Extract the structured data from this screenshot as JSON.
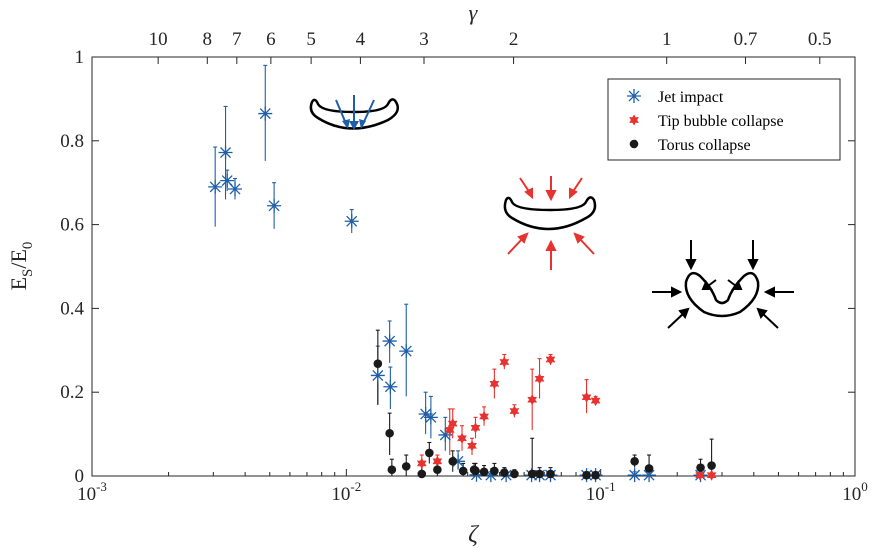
{
  "chart_data": {
    "type": "scatter",
    "xscale": "log",
    "xlim": [
      0.001,
      1
    ],
    "ylim": [
      0,
      1
    ],
    "xlabel": "ζ",
    "ylabel_main": "E",
    "ylabel_sub1": "S",
    "ylabel_slash": "/E",
    "ylabel_sub2": "0",
    "top_axis_label": "γ",
    "x_ticks": [
      {
        "value": 0.001,
        "base": "10",
        "exp": "-3"
      },
      {
        "value": 0.01,
        "base": "10",
        "exp": "-2"
      },
      {
        "value": 0.1,
        "base": "10",
        "exp": "-1"
      },
      {
        "value": 1,
        "base": "10",
        "exp": "0"
      }
    ],
    "y_ticks": [
      {
        "value": 0,
        "label": "0"
      },
      {
        "value": 0.2,
        "label": "0.2"
      },
      {
        "value": 0.4,
        "label": "0.4"
      },
      {
        "value": 0.6,
        "label": "0.6"
      },
      {
        "value": 0.8,
        "label": "0.8"
      },
      {
        "value": 1,
        "label": "1"
      }
    ],
    "top_ticks": [
      {
        "label": "10",
        "zeta": 0.00182
      },
      {
        "label": "8",
        "zeta": 0.00284
      },
      {
        "label": "7",
        "zeta": 0.00371
      },
      {
        "label": "6",
        "zeta": 0.00505
      },
      {
        "label": "5",
        "zeta": 0.00727
      },
      {
        "label": "4",
        "zeta": 0.01136
      },
      {
        "label": "3",
        "zeta": 0.0202
      },
      {
        "label": "2",
        "zeta": 0.04545
      },
      {
        "label": "1",
        "zeta": 0.1818
      },
      {
        "label": "0.7",
        "zeta": 0.371
      },
      {
        "label": "0.5",
        "zeta": 0.727
      }
    ],
    "legend_position": "top-right",
    "series": [
      {
        "name": "Jet impact",
        "marker": "asterisk",
        "color": "#1f5fa8",
        "points": [
          {
            "x": 0.00305,
            "y": 0.69,
            "lo": 0.595,
            "hi": 0.785
          },
          {
            "x": 0.00335,
            "y": 0.772,
            "lo": 0.66,
            "hi": 0.882
          },
          {
            "x": 0.0034,
            "y": 0.705,
            "lo": 0.68,
            "hi": 0.73
          },
          {
            "x": 0.00365,
            "y": 0.685,
            "lo": 0.66,
            "hi": 0.71
          },
          {
            "x": 0.0048,
            "y": 0.865,
            "lo": 0.752,
            "hi": 0.98
          },
          {
            "x": 0.0052,
            "y": 0.645,
            "lo": 0.59,
            "hi": 0.7
          },
          {
            "x": 0.0105,
            "y": 0.608,
            "lo": 0.58,
            "hi": 0.636
          },
          {
            "x": 0.0133,
            "y": 0.24,
            "lo": 0.17,
            "hi": 0.31
          },
          {
            "x": 0.0148,
            "y": 0.322,
            "lo": 0.27,
            "hi": 0.37
          },
          {
            "x": 0.0149,
            "y": 0.213,
            "lo": 0.16,
            "hi": 0.26
          },
          {
            "x": 0.0172,
            "y": 0.298,
            "lo": 0.19,
            "hi": 0.41
          },
          {
            "x": 0.0205,
            "y": 0.148,
            "lo": 0.1,
            "hi": 0.2
          },
          {
            "x": 0.0215,
            "y": 0.14,
            "lo": 0.09,
            "hi": 0.19
          },
          {
            "x": 0.0245,
            "y": 0.098,
            "lo": 0.06,
            "hi": 0.14
          },
          {
            "x": 0.0275,
            "y": 0.035,
            "lo": 0.015,
            "hi": 0.06
          },
          {
            "x": 0.0325,
            "y": 0.003,
            "lo": 0,
            "hi": 0.02
          },
          {
            "x": 0.037,
            "y": 0.002,
            "lo": 0,
            "hi": 0.01
          },
          {
            "x": 0.0425,
            "y": 0.002,
            "lo": 0,
            "hi": 0.01
          },
          {
            "x": 0.0535,
            "y": 0.002,
            "lo": 0,
            "hi": 0.01
          },
          {
            "x": 0.0575,
            "y": 0.002,
            "lo": 0,
            "hi": 0.01
          },
          {
            "x": 0.0635,
            "y": 0.002,
            "lo": 0,
            "hi": 0.01
          },
          {
            "x": 0.088,
            "y": 0.002,
            "lo": 0,
            "hi": 0.01
          },
          {
            "x": 0.0955,
            "y": 0.002,
            "lo": 0,
            "hi": 0.01
          },
          {
            "x": 0.136,
            "y": 0.002,
            "lo": 0,
            "hi": 0.01
          },
          {
            "x": 0.155,
            "y": 0.002,
            "lo": 0,
            "hi": 0.01
          },
          {
            "x": 0.247,
            "y": 0.002,
            "lo": 0,
            "hi": 0.01
          }
        ]
      },
      {
        "name": "Tip bubble collapse",
        "marker": "hexagram",
        "color": "#e8322f",
        "points": [
          {
            "x": 0.0198,
            "y": 0.03,
            "lo": 0.01,
            "hi": 0.05
          },
          {
            "x": 0.0228,
            "y": 0.035,
            "lo": 0.02,
            "hi": 0.05
          },
          {
            "x": 0.0255,
            "y": 0.11,
            "lo": 0.05,
            "hi": 0.16
          },
          {
            "x": 0.0262,
            "y": 0.125,
            "lo": 0.09,
            "hi": 0.16
          },
          {
            "x": 0.0285,
            "y": 0.09,
            "lo": 0.06,
            "hi": 0.12
          },
          {
            "x": 0.0312,
            "y": 0.072,
            "lo": 0.05,
            "hi": 0.09
          },
          {
            "x": 0.0322,
            "y": 0.115,
            "lo": 0.09,
            "hi": 0.14
          },
          {
            "x": 0.0348,
            "y": 0.142,
            "lo": 0.12,
            "hi": 0.165
          },
          {
            "x": 0.0382,
            "y": 0.22,
            "lo": 0.185,
            "hi": 0.255
          },
          {
            "x": 0.0418,
            "y": 0.272,
            "lo": 0.255,
            "hi": 0.29
          },
          {
            "x": 0.0458,
            "y": 0.155,
            "lo": 0.14,
            "hi": 0.17
          },
          {
            "x": 0.0538,
            "y": 0.182,
            "lo": 0.11,
            "hi": 0.255
          },
          {
            "x": 0.0575,
            "y": 0.232,
            "lo": 0.185,
            "hi": 0.28
          },
          {
            "x": 0.0635,
            "y": 0.278,
            "lo": 0.265,
            "hi": 0.29
          },
          {
            "x": 0.088,
            "y": 0.188,
            "lo": 0.15,
            "hi": 0.23
          },
          {
            "x": 0.0955,
            "y": 0.18,
            "lo": 0.17,
            "hi": 0.19
          },
          {
            "x": 0.246,
            "y": 0.002,
            "lo": 0,
            "hi": 0.02
          },
          {
            "x": 0.273,
            "y": 0.002,
            "lo": 0,
            "hi": 0.02
          }
        ]
      },
      {
        "name": "Torus collapse",
        "marker": "circle",
        "color": "#1a1a1a",
        "points": [
          {
            "x": 0.0133,
            "y": 0.268,
            "lo": 0.17,
            "hi": 0.348
          },
          {
            "x": 0.0148,
            "y": 0.102,
            "lo": 0.05,
            "hi": 0.15
          },
          {
            "x": 0.0151,
            "y": 0.015,
            "lo": 0,
            "hi": 0.04
          },
          {
            "x": 0.0172,
            "y": 0.023,
            "lo": 0,
            "hi": 0.05
          },
          {
            "x": 0.0198,
            "y": 0.005,
            "lo": 0,
            "hi": 0.03
          },
          {
            "x": 0.0212,
            "y": 0.055,
            "lo": 0.03,
            "hi": 0.08
          },
          {
            "x": 0.0228,
            "y": 0.015,
            "lo": 0,
            "hi": 0.04
          },
          {
            "x": 0.0262,
            "y": 0.035,
            "lo": 0.01,
            "hi": 0.06
          },
          {
            "x": 0.0288,
            "y": 0.012,
            "lo": 0,
            "hi": 0.03
          },
          {
            "x": 0.0318,
            "y": 0.015,
            "lo": 0,
            "hi": 0.03
          },
          {
            "x": 0.0322,
            "y": 0.012,
            "lo": 0,
            "hi": 0.03
          },
          {
            "x": 0.0348,
            "y": 0.01,
            "lo": 0,
            "hi": 0.025
          },
          {
            "x": 0.0382,
            "y": 0.012,
            "lo": 0,
            "hi": 0.03
          },
          {
            "x": 0.0418,
            "y": 0.008,
            "lo": 0,
            "hi": 0.02
          },
          {
            "x": 0.0458,
            "y": 0.005,
            "lo": 0,
            "hi": 0.015
          },
          {
            "x": 0.0538,
            "y": 0.005,
            "lo": 0,
            "hi": 0.09
          },
          {
            "x": 0.0575,
            "y": 0.005,
            "lo": 0,
            "hi": 0.02
          },
          {
            "x": 0.0635,
            "y": 0.005,
            "lo": 0,
            "hi": 0.02
          },
          {
            "x": 0.088,
            "y": 0.002,
            "lo": 0,
            "hi": 0.01
          },
          {
            "x": 0.0955,
            "y": 0.002,
            "lo": 0,
            "hi": 0.01
          },
          {
            "x": 0.136,
            "y": 0.035,
            "lo": 0.02,
            "hi": 0.05
          },
          {
            "x": 0.155,
            "y": 0.018,
            "lo": 0,
            "hi": 0.05
          },
          {
            "x": 0.247,
            "y": 0.02,
            "lo": 0,
            "hi": 0.04
          },
          {
            "x": 0.273,
            "y": 0.025,
            "lo": 0,
            "hi": 0.088
          }
        ]
      }
    ]
  }
}
